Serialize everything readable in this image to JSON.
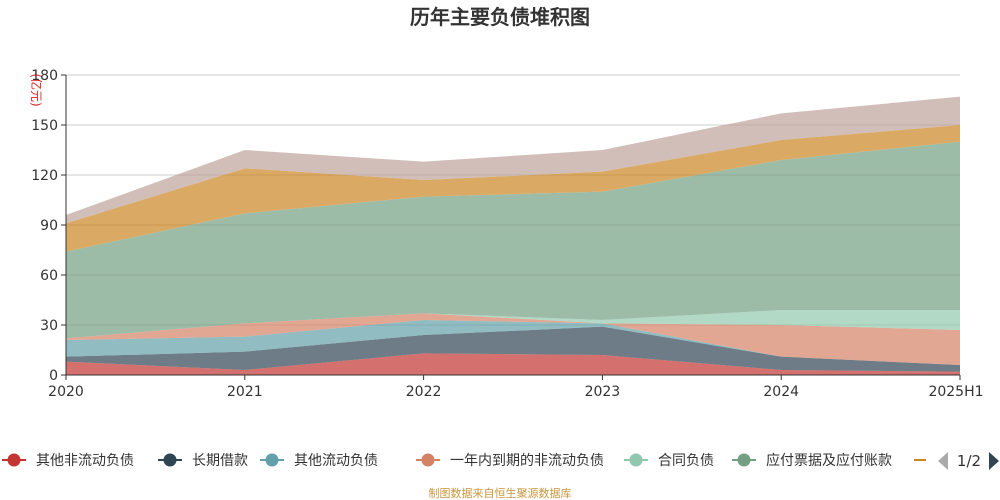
{
  "chart_data": {
    "type": "area",
    "stacked": true,
    "title": "历年主要负债堆积图",
    "unit_label": "(亿元)",
    "x": [
      "2020",
      "2021",
      "2022",
      "2023",
      "2024",
      "2025H1"
    ],
    "ylim": [
      0,
      180
    ],
    "yticks": [
      "0",
      "30",
      "60",
      "90",
      "120",
      "150",
      "180"
    ],
    "grid": true,
    "legend_position": "bottom",
    "legend_page": "1/2",
    "series": [
      {
        "name": "其他非流动负债",
        "color": "#c23531",
        "values": [
          8,
          3,
          13,
          12,
          3,
          2
        ]
      },
      {
        "name": "长期借款",
        "color": "#2f4554",
        "values": [
          3,
          11,
          11,
          17,
          8,
          4
        ]
      },
      {
        "name": "其他流动负债",
        "color": "#61a0a8",
        "values": [
          10,
          9,
          9,
          2,
          0,
          0
        ]
      },
      {
        "name": "一年内到期的非流动负债",
        "color": "#d48265",
        "values": [
          1,
          8,
          4,
          0,
          19,
          21
        ]
      },
      {
        "name": "合同负债",
        "color": "#91c7ae",
        "values": [
          0,
          0,
          0,
          2,
          9,
          12
        ]
      },
      {
        "name": "应付票据及应付账款",
        "color": "#749f83",
        "values": [
          52,
          66,
          70,
          77,
          90,
          101
        ]
      },
      {
        "name": "",
        "color": "#ca8622",
        "values": [
          17,
          27,
          10,
          12,
          12,
          10
        ]
      },
      {
        "name": "",
        "color": "#bda29a",
        "values": [
          5,
          11,
          11,
          13,
          16,
          17
        ]
      }
    ]
  },
  "footer": "制图数据来自恒生聚源数据库"
}
